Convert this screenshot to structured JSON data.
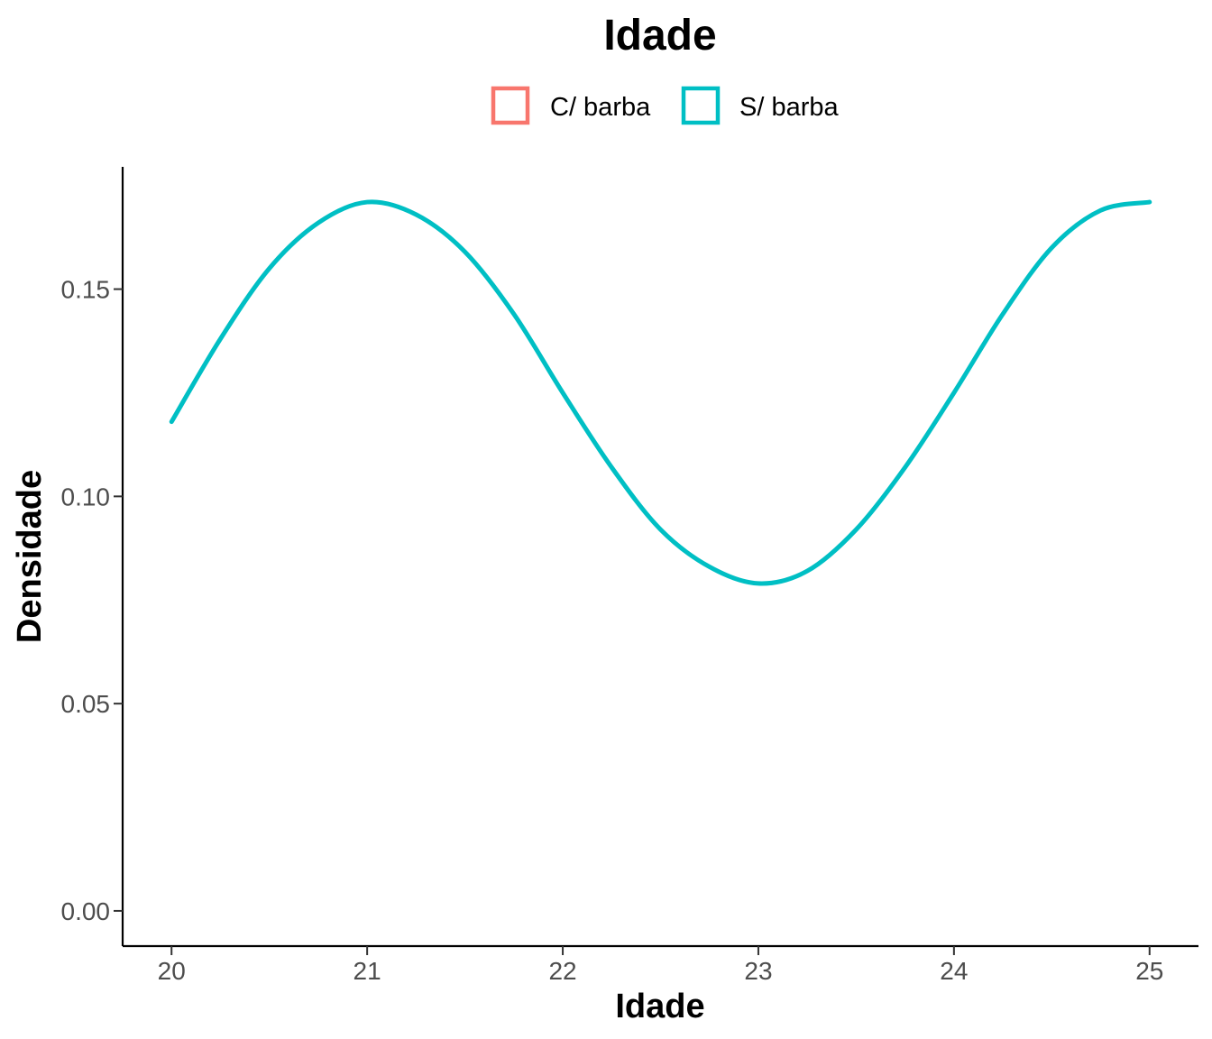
{
  "chart_data": {
    "type": "line",
    "title": "Idade",
    "xlabel": "Idade",
    "ylabel": "Densidade",
    "xlim": [
      19.75,
      25.25
    ],
    "ylim": [
      -0.0085,
      0.1795
    ],
    "x_ticks": [
      20,
      21,
      22,
      23,
      24,
      25
    ],
    "x_tick_labels": [
      "20",
      "21",
      "22",
      "23",
      "24",
      "25"
    ],
    "y_ticks": [
      0.0,
      0.05,
      0.1,
      0.15
    ],
    "y_tick_labels": [
      "0.00",
      "0.05",
      "0.10",
      "0.15"
    ],
    "grid": false,
    "legend_position": "top",
    "legend": [
      {
        "name": "C/ barba",
        "color": "#F8766D"
      },
      {
        "name": "S/ barba",
        "color": "#00BFC4"
      }
    ],
    "series": [
      {
        "name": "S/ barba",
        "color": "#00BFC4",
        "x": [
          20.0,
          20.25,
          20.5,
          20.75,
          21.0,
          21.25,
          21.5,
          21.75,
          22.0,
          22.25,
          22.5,
          22.75,
          23.0,
          23.25,
          23.5,
          23.75,
          24.0,
          24.25,
          24.5,
          24.75,
          25.0
        ],
        "y": [
          0.118,
          0.138,
          0.155,
          0.166,
          0.171,
          0.168,
          0.159,
          0.144,
          0.125,
          0.107,
          0.092,
          0.083,
          0.079,
          0.082,
          0.092,
          0.107,
          0.125,
          0.144,
          0.16,
          0.169,
          0.171
        ]
      }
    ]
  }
}
